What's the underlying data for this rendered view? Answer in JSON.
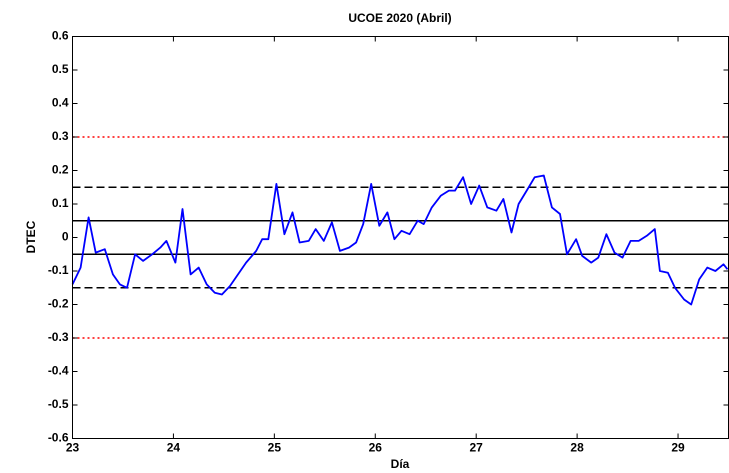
{
  "chart_data": {
    "type": "line",
    "title": "UCOE 2020 (Abril)",
    "xlabel": "Día",
    "ylabel": "DTEC",
    "xlim": [
      23,
      29.5
    ],
    "xticks": [
      23,
      24,
      25,
      26,
      27,
      28,
      29
    ],
    "ylim": [
      -0.6,
      0.6
    ],
    "yticks": [
      -0.6,
      -0.5,
      -0.4,
      -0.3,
      -0.2,
      -0.1,
      0,
      0.1,
      0.2,
      0.3,
      0.4,
      0.5,
      0.6
    ],
    "hlines": [
      {
        "y": 0.05,
        "style": "solid",
        "color": "#000000"
      },
      {
        "y": -0.05,
        "style": "solid",
        "color": "#000000"
      },
      {
        "y": 0.15,
        "style": "dashed",
        "color": "#000000"
      },
      {
        "y": -0.15,
        "style": "dashed",
        "color": "#000000"
      },
      {
        "y": 0.3,
        "style": "dotted",
        "color": "#ff0000"
      },
      {
        "y": -0.3,
        "style": "dotted",
        "color": "#ff0000"
      }
    ],
    "series": [
      {
        "color": "#0000ff",
        "x": [
          23.0,
          23.08,
          23.16,
          23.23,
          23.32,
          23.4,
          23.47,
          23.54,
          23.62,
          23.7,
          23.79,
          23.87,
          23.93,
          24.02,
          24.09,
          24.17,
          24.25,
          24.33,
          24.41,
          24.48,
          24.56,
          24.72,
          24.82,
          24.88,
          24.94,
          25.02,
          25.1,
          25.18,
          25.25,
          25.34,
          25.41,
          25.49,
          25.57,
          25.65,
          25.74,
          25.81,
          25.88,
          25.96,
          26.04,
          26.12,
          26.19,
          26.26,
          26.34,
          26.42,
          26.48,
          26.56,
          26.65,
          26.73,
          26.79,
          26.87,
          26.95,
          27.03,
          27.11,
          27.2,
          27.27,
          27.35,
          27.42,
          27.5,
          27.58,
          27.67,
          27.75,
          27.83,
          27.9,
          27.99,
          28.05,
          28.14,
          28.21,
          28.29,
          28.37,
          28.45,
          28.53,
          28.61,
          28.69,
          28.77,
          28.82,
          28.9,
          28.97,
          29.06,
          29.13,
          29.21,
          29.29,
          29.37,
          29.45,
          29.49
        ],
        "values": [
          -0.14,
          -0.09,
          0.06,
          -0.045,
          -0.035,
          -0.11,
          -0.14,
          -0.15,
          -0.05,
          -0.07,
          -0.05,
          -0.03,
          -0.01,
          -0.075,
          0.085,
          -0.11,
          -0.09,
          -0.14,
          -0.165,
          -0.17,
          -0.145,
          -0.075,
          -0.04,
          -0.005,
          -0.005,
          0.16,
          0.01,
          0.075,
          -0.015,
          -0.01,
          0.025,
          -0.01,
          0.045,
          -0.04,
          -0.03,
          -0.015,
          0.04,
          0.16,
          0.035,
          0.075,
          -0.005,
          0.02,
          0.01,
          0.05,
          0.04,
          0.09,
          0.125,
          0.14,
          0.14,
          0.18,
          0.1,
          0.155,
          0.09,
          0.08,
          0.115,
          0.015,
          0.1,
          0.14,
          0.18,
          0.185,
          0.09,
          0.07,
          -0.05,
          -0.005,
          -0.055,
          -0.075,
          -0.06,
          0.01,
          -0.045,
          -0.06,
          -0.01,
          -0.01,
          0.005,
          0.025,
          -0.1,
          -0.105,
          -0.15,
          -0.185,
          -0.2,
          -0.125,
          -0.09,
          -0.1,
          -0.08,
          -0.095
        ]
      }
    ]
  }
}
